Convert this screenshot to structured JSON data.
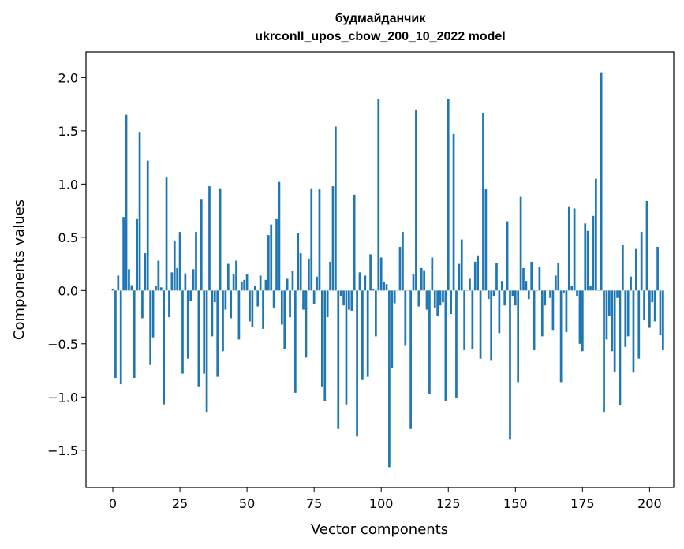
{
  "chart_data": {
    "type": "bar",
    "title": "будмайданчик",
    "subtitle": "ukrconll_upos_cbow_200_10_2022 model",
    "xlabel": "Vector components",
    "ylabel": "Components values",
    "xlim": [
      -10,
      209
    ],
    "ylim": [
      -1.85,
      2.24
    ],
    "xticks": [
      0,
      25,
      50,
      75,
      100,
      125,
      150,
      175,
      200
    ],
    "yticks": [
      -1.5,
      -1.0,
      -0.5,
      0.0,
      0.5,
      1.0,
      1.5,
      2.0
    ],
    "ytick_labels": [
      "−1.5",
      "−1.0",
      "−0.5",
      "0.0",
      "0.5",
      "1.0",
      "1.5",
      "2.0"
    ],
    "bar_color": "#1f77b4",
    "grid": false,
    "values": [
      0.01,
      -0.82,
      0.14,
      -0.88,
      0.69,
      1.65,
      0.2,
      0.05,
      -0.82,
      0.67,
      1.49,
      -0.26,
      0.35,
      1.22,
      -0.7,
      -0.44,
      0.04,
      0.28,
      0.03,
      -1.07,
      1.06,
      -0.25,
      0.17,
      0.47,
      0.21,
      0.55,
      -0.78,
      0.16,
      -0.64,
      -0.1,
      0.2,
      0.55,
      -0.9,
      0.86,
      -0.78,
      -1.14,
      0.98,
      -0.43,
      -0.11,
      -0.81,
      0.96,
      -0.57,
      -0.18,
      0.25,
      -0.26,
      0.15,
      0.28,
      -0.46,
      0.08,
      0.1,
      0.15,
      -0.29,
      -0.34,
      0.04,
      -0.15,
      0.14,
      -0.36,
      0.1,
      0.52,
      0.62,
      -0.16,
      0.67,
      1.02,
      -0.32,
      -0.55,
      0.11,
      -0.25,
      0.18,
      -0.96,
      0.54,
      0.35,
      -0.18,
      -0.63,
      0.3,
      0.96,
      -0.13,
      0.13,
      0.95,
      -0.9,
      -1.04,
      -0.25,
      0.27,
      0.98,
      1.54,
      -1.3,
      -0.05,
      -0.14,
      -1.07,
      -0.18,
      -0.19,
      0.9,
      -1.37,
      0.17,
      -0.84,
      0.14,
      -0.81,
      0.34,
      0.01,
      -0.43,
      1.8,
      0.31,
      0.08,
      0.06,
      -1.66,
      -0.73,
      -0.12,
      0.0,
      0.41,
      0.55,
      -0.52,
      0.0,
      -1.3,
      0.15,
      1.7,
      -0.15,
      0.21,
      0.19,
      -0.18,
      -0.97,
      0.31,
      -0.16,
      -0.24,
      -0.14,
      -0.11,
      -1.04,
      1.8,
      -0.22,
      1.47,
      -1.01,
      0.25,
      0.48,
      -0.56,
      0.0,
      0.11,
      -0.55,
      0.27,
      0.33,
      -0.64,
      1.67,
      0.95,
      -0.08,
      -0.66,
      -0.05,
      0.26,
      -0.4,
      0.09,
      -0.14,
      0.65,
      -1.4,
      -0.05,
      -0.14,
      -0.86,
      0.88,
      0.21,
      0.09,
      -0.08,
      0.27,
      -0.56,
      0.0,
      0.22,
      -0.43,
      -0.14,
      0.0,
      -0.07,
      -0.37,
      0.14,
      0.26,
      -0.86,
      -0.02,
      -0.39,
      0.79,
      0.04,
      0.77,
      -0.05,
      -0.5,
      -0.57,
      0.63,
      0.56,
      0.04,
      0.7,
      1.05,
      0.0,
      2.05,
      -1.14,
      -0.46,
      -0.24,
      -0.57,
      -0.76,
      -0.07,
      -1.08,
      0.43,
      -0.53,
      -0.43,
      0.13,
      -0.77,
      0.39,
      -0.64,
      0.55,
      -0.28,
      0.84,
      -0.35,
      -0.11,
      -0.29,
      0.41,
      -0.42,
      -0.56
    ]
  }
}
